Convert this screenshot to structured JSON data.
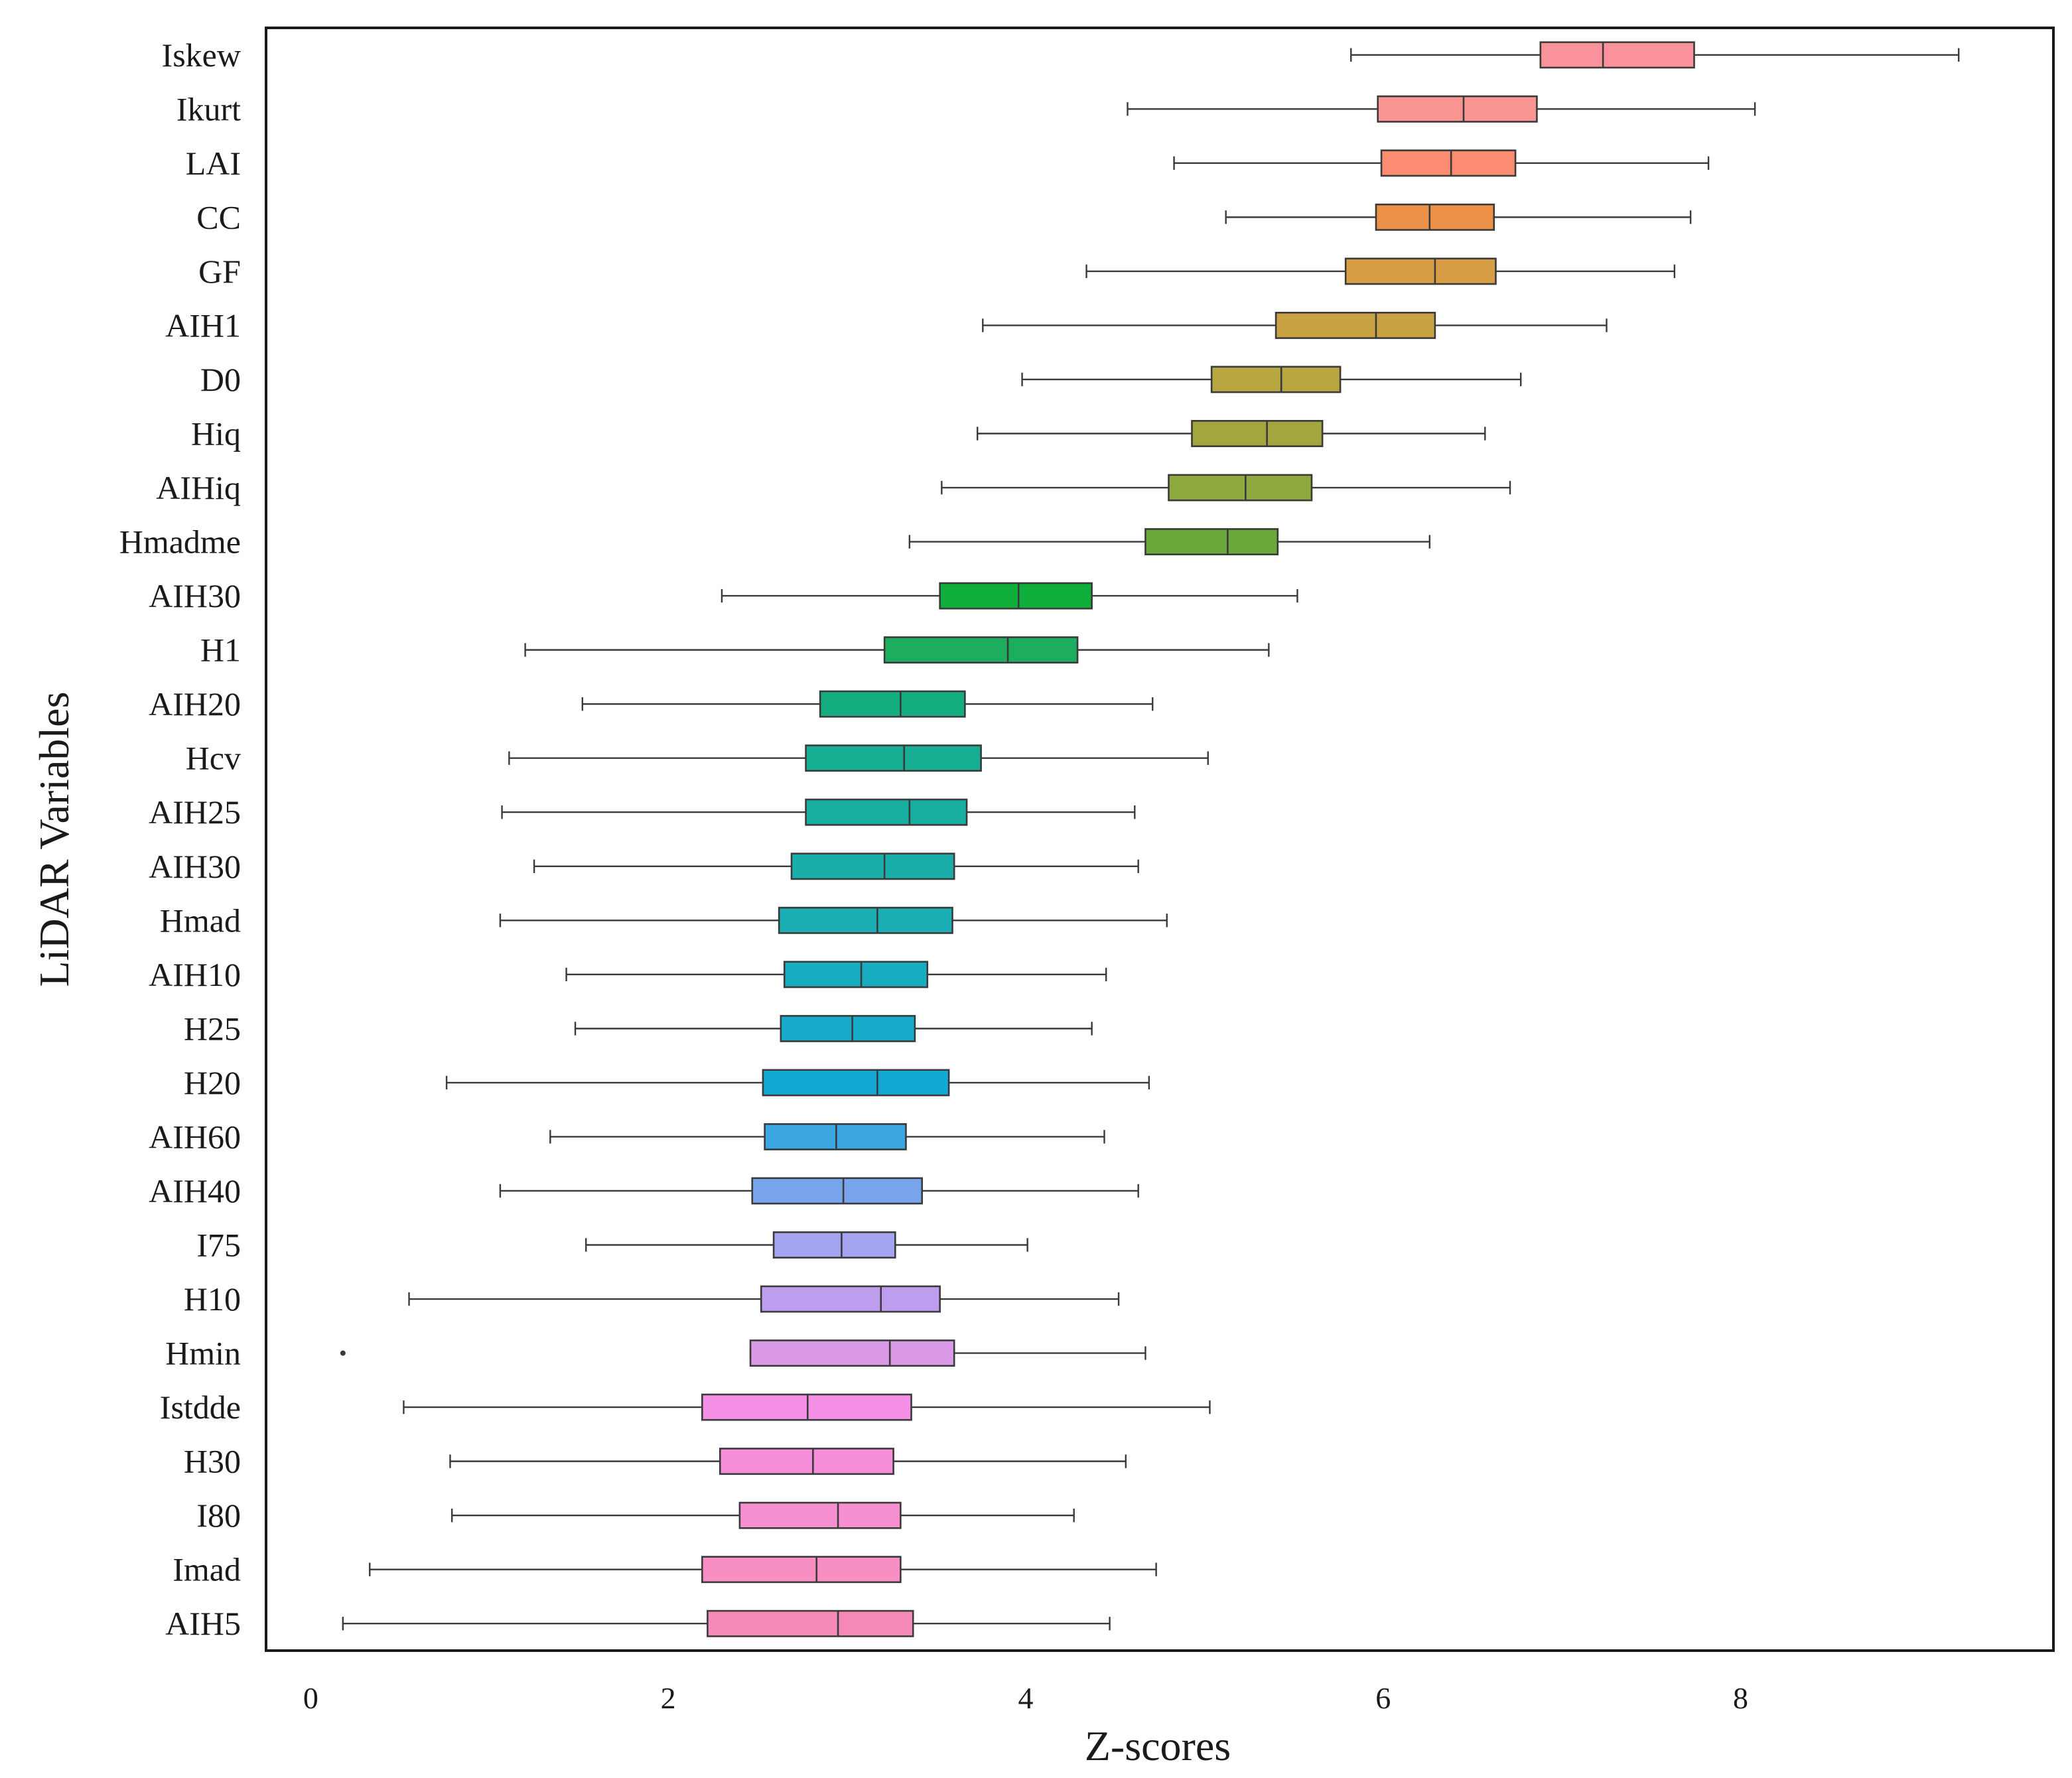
{
  "chart_data": {
    "type": "boxplot",
    "orientation": "horizontal",
    "title": "",
    "xlabel": "Z-scores",
    "ylabel": "LiDAR Variables",
    "xlim": [
      -0.25,
      9.75
    ],
    "xticks": [
      0,
      2,
      4,
      6,
      8
    ],
    "grid": false,
    "legend": "none",
    "categories": [
      "Iskew",
      "Ikurt",
      "LAI",
      "CC",
      "GF",
      "AIH1",
      "D0",
      "Hiq",
      "AIHiq",
      "Hmadme",
      "AIH30",
      "H1",
      "AIH20",
      "Hcv",
      "AIH25",
      "AIH30",
      "Hmad",
      "AIH10",
      "H25",
      "H20",
      "AIH60",
      "AIH40",
      "I75",
      "H10",
      "Hmin",
      "Istdde",
      "H30",
      "I80",
      "Imad",
      "AIH5"
    ],
    "boxes": [
      {
        "label": "Iskew",
        "min": 5.82,
        "q1": 6.88,
        "median": 7.23,
        "q3": 7.74,
        "max": 9.22,
        "color": "#f9929a",
        "outliers": []
      },
      {
        "label": "Ikurt",
        "min": 4.57,
        "q1": 5.97,
        "median": 6.45,
        "q3": 6.86,
        "max": 8.08,
        "color": "#f99591",
        "outliers": []
      },
      {
        "label": "LAI",
        "min": 4.83,
        "q1": 5.99,
        "median": 6.38,
        "q3": 6.74,
        "max": 7.82,
        "color": "#fb8b71",
        "outliers": []
      },
      {
        "label": "CC",
        "min": 5.12,
        "q1": 5.96,
        "median": 6.26,
        "q3": 6.62,
        "max": 7.72,
        "color": "#ec9148",
        "outliers": []
      },
      {
        "label": "GF",
        "min": 4.34,
        "q1": 5.79,
        "median": 6.29,
        "q3": 6.63,
        "max": 7.63,
        "color": "#d89e45",
        "outliers": []
      },
      {
        "label": "AIH1",
        "min": 3.76,
        "q1": 5.4,
        "median": 5.96,
        "q3": 6.29,
        "max": 7.25,
        "color": "#c8a243",
        "outliers": []
      },
      {
        "label": "D0",
        "min": 3.98,
        "q1": 5.04,
        "median": 5.43,
        "q3": 5.76,
        "max": 6.77,
        "color": "#b8a741",
        "outliers": []
      },
      {
        "label": "Hiq",
        "min": 3.73,
        "q1": 4.93,
        "median": 5.35,
        "q3": 5.66,
        "max": 6.57,
        "color": "#a3a63f",
        "outliers": []
      },
      {
        "label": "AIHiq",
        "min": 3.53,
        "q1": 4.8,
        "median": 5.23,
        "q3": 5.6,
        "max": 6.71,
        "color": "#8ea93e",
        "outliers": []
      },
      {
        "label": "Hmadme",
        "min": 3.35,
        "q1": 4.67,
        "median": 5.13,
        "q3": 5.41,
        "max": 6.26,
        "color": "#6aa83c",
        "outliers": []
      },
      {
        "label": "AIH30",
        "min": 2.3,
        "q1": 3.52,
        "median": 3.96,
        "q3": 4.37,
        "max": 5.52,
        "color": "#0fae3a",
        "outliers": []
      },
      {
        "label": "H1",
        "min": 1.2,
        "q1": 3.21,
        "median": 3.9,
        "q3": 4.29,
        "max": 5.36,
        "color": "#1cae5e",
        "outliers": []
      },
      {
        "label": "AIH20",
        "min": 1.52,
        "q1": 2.85,
        "median": 3.3,
        "q3": 3.66,
        "max": 4.71,
        "color": "#13ad80",
        "outliers": []
      },
      {
        "label": "Hcv",
        "min": 1.11,
        "q1": 2.77,
        "median": 3.32,
        "q3": 3.75,
        "max": 5.02,
        "color": "#17ae94",
        "outliers": []
      },
      {
        "label": "AIH25",
        "min": 1.07,
        "q1": 2.77,
        "median": 3.35,
        "q3": 3.67,
        "max": 4.61,
        "color": "#18ae9f",
        "outliers": []
      },
      {
        "label": "AIH30",
        "min": 1.25,
        "q1": 2.69,
        "median": 3.21,
        "q3": 3.6,
        "max": 4.63,
        "color": "#1aaeab",
        "outliers": []
      },
      {
        "label": "Hmad",
        "min": 1.06,
        "q1": 2.62,
        "median": 3.17,
        "q3": 3.59,
        "max": 4.79,
        "color": "#1bafb5",
        "outliers": []
      },
      {
        "label": "AIH10",
        "min": 1.43,
        "q1": 2.65,
        "median": 3.08,
        "q3": 3.45,
        "max": 4.45,
        "color": "#18acc0",
        "outliers": []
      },
      {
        "label": "H25",
        "min": 1.48,
        "q1": 2.63,
        "median": 3.03,
        "q3": 3.38,
        "max": 4.37,
        "color": "#16aacb",
        "outliers": []
      },
      {
        "label": "H20",
        "min": 0.76,
        "q1": 2.53,
        "median": 3.17,
        "q3": 3.57,
        "max": 4.69,
        "color": "#13a8d5",
        "outliers": []
      },
      {
        "label": "AIH60",
        "min": 1.34,
        "q1": 2.54,
        "median": 2.94,
        "q3": 3.33,
        "max": 4.44,
        "color": "#3aa6e2",
        "outliers": []
      },
      {
        "label": "AIH40",
        "min": 1.06,
        "q1": 2.47,
        "median": 2.98,
        "q3": 3.42,
        "max": 4.63,
        "color": "#78a4ec",
        "outliers": []
      },
      {
        "label": "I75",
        "min": 1.54,
        "q1": 2.59,
        "median": 2.97,
        "q3": 3.27,
        "max": 4.01,
        "color": "#a4a3ef",
        "outliers": []
      },
      {
        "label": "H10",
        "min": 0.55,
        "q1": 2.52,
        "median": 3.19,
        "q3": 3.52,
        "max": 4.52,
        "color": "#bf9dee",
        "outliers": []
      },
      {
        "label": "Hmin",
        "min": 2.46,
        "q1": 2.46,
        "median": 3.24,
        "q3": 3.6,
        "max": 4.67,
        "color": "#db9ae8",
        "outliers": [
          0.18
        ]
      },
      {
        "label": "Istdde",
        "min": 0.52,
        "q1": 2.19,
        "median": 2.78,
        "q3": 3.36,
        "max": 5.03,
        "color": "#f68fe6",
        "outliers": []
      },
      {
        "label": "H30",
        "min": 0.78,
        "q1": 2.29,
        "median": 2.81,
        "q3": 3.26,
        "max": 4.56,
        "color": "#f68edb",
        "outliers": []
      },
      {
        "label": "I80",
        "min": 0.79,
        "q1": 2.4,
        "median": 2.95,
        "q3": 3.3,
        "max": 4.27,
        "color": "#f790d0",
        "outliers": []
      },
      {
        "label": "Imad",
        "min": 0.33,
        "q1": 2.19,
        "median": 2.83,
        "q3": 3.3,
        "max": 4.73,
        "color": "#f78fc3",
        "outliers": []
      },
      {
        "label": "AIH5",
        "min": 0.18,
        "q1": 2.22,
        "median": 2.95,
        "q3": 3.37,
        "max": 4.47,
        "color": "#f58ab8",
        "outliers": []
      }
    ]
  }
}
